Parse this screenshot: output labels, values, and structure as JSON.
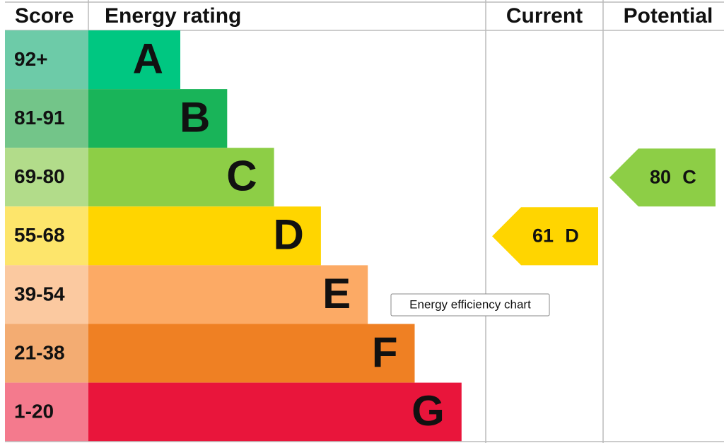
{
  "header": {
    "score": "Score",
    "rating": "Energy rating",
    "current": "Current",
    "potential": "Potential"
  },
  "rows": [
    {
      "score": "92+",
      "letter": "A",
      "color": "#00c781",
      "score_color": "#6dcba8"
    },
    {
      "score": "81-91",
      "letter": "B",
      "color": "#19b459",
      "score_color": "#73c589"
    },
    {
      "score": "69-80",
      "letter": "C",
      "color": "#8dce46",
      "score_color": "#b2dc8a"
    },
    {
      "score": "55-68",
      "letter": "D",
      "color": "#ffd500",
      "score_color": "#fde56b"
    },
    {
      "score": "39-54",
      "letter": "E",
      "color": "#fcaa65",
      "score_color": "#fbc9a0"
    },
    {
      "score": "21-38",
      "letter": "F",
      "color": "#ef8023",
      "score_color": "#f3ac72"
    },
    {
      "score": "1-20",
      "letter": "G",
      "color": "#e9153b",
      "score_color": "#f47a8d"
    }
  ],
  "current": {
    "value": 61,
    "letter": "D"
  },
  "potential": {
    "value": 80,
    "letter": "C"
  },
  "tooltip": "Energy efficiency chart"
}
